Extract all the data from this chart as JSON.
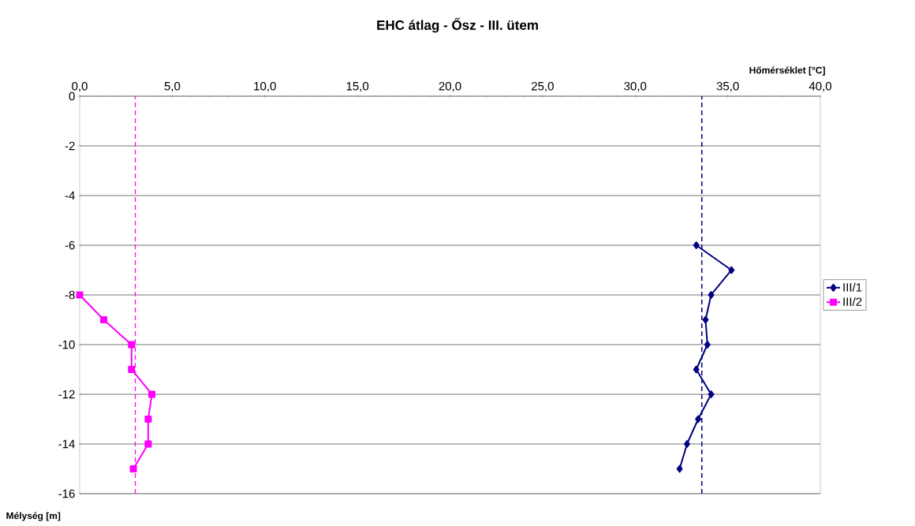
{
  "chart_data": {
    "type": "line",
    "title": "EHC átlag - Ősz - III. ütem",
    "xlabel": "Hőmérséklet [°C]",
    "ylabel": "Mélység [m]",
    "xlim": [
      0,
      40
    ],
    "ylim": [
      -16,
      0
    ],
    "xticks": [
      {
        "value": 0,
        "label": "0,0"
      },
      {
        "value": 5,
        "label": "5,0"
      },
      {
        "value": 10,
        "label": "10,0"
      },
      {
        "value": 15,
        "label": "15,0"
      },
      {
        "value": 20,
        "label": "20,0"
      },
      {
        "value": 25,
        "label": "25,0"
      },
      {
        "value": 30,
        "label": "30,0"
      },
      {
        "value": 35,
        "label": "35,0"
      },
      {
        "value": 40,
        "label": "40,0"
      }
    ],
    "yticks": [
      0,
      -2,
      -4,
      -6,
      -8,
      -10,
      -12,
      -14,
      -16
    ],
    "grid": "y",
    "legend": "right",
    "series": [
      {
        "name": "III/1",
        "color": "#000080",
        "marker": "diamond",
        "x": [
          33.3,
          35.2,
          34.1,
          33.8,
          33.9,
          33.3,
          34.1,
          33.4,
          32.8,
          32.4
        ],
        "values": [
          -6,
          -7,
          -8,
          -9,
          -10,
          -11,
          -12,
          -13,
          -14,
          -15
        ]
      },
      {
        "name": "III/2",
        "color": "#ff00ff",
        "marker": "square",
        "x": [
          0,
          1.3,
          2.8,
          2.8,
          3.9,
          3.7,
          3.7,
          2.9
        ],
        "values": [
          -8,
          -9,
          -10,
          -11,
          -12,
          -13,
          -14,
          -15
        ]
      }
    ],
    "ref_lines": [
      {
        "axis": "x",
        "value": 33.6,
        "color": "#000080",
        "line_style": "dashed"
      },
      {
        "axis": "x",
        "value": 3.0,
        "color": "#ff00ff",
        "line_style": "dashed"
      }
    ]
  }
}
